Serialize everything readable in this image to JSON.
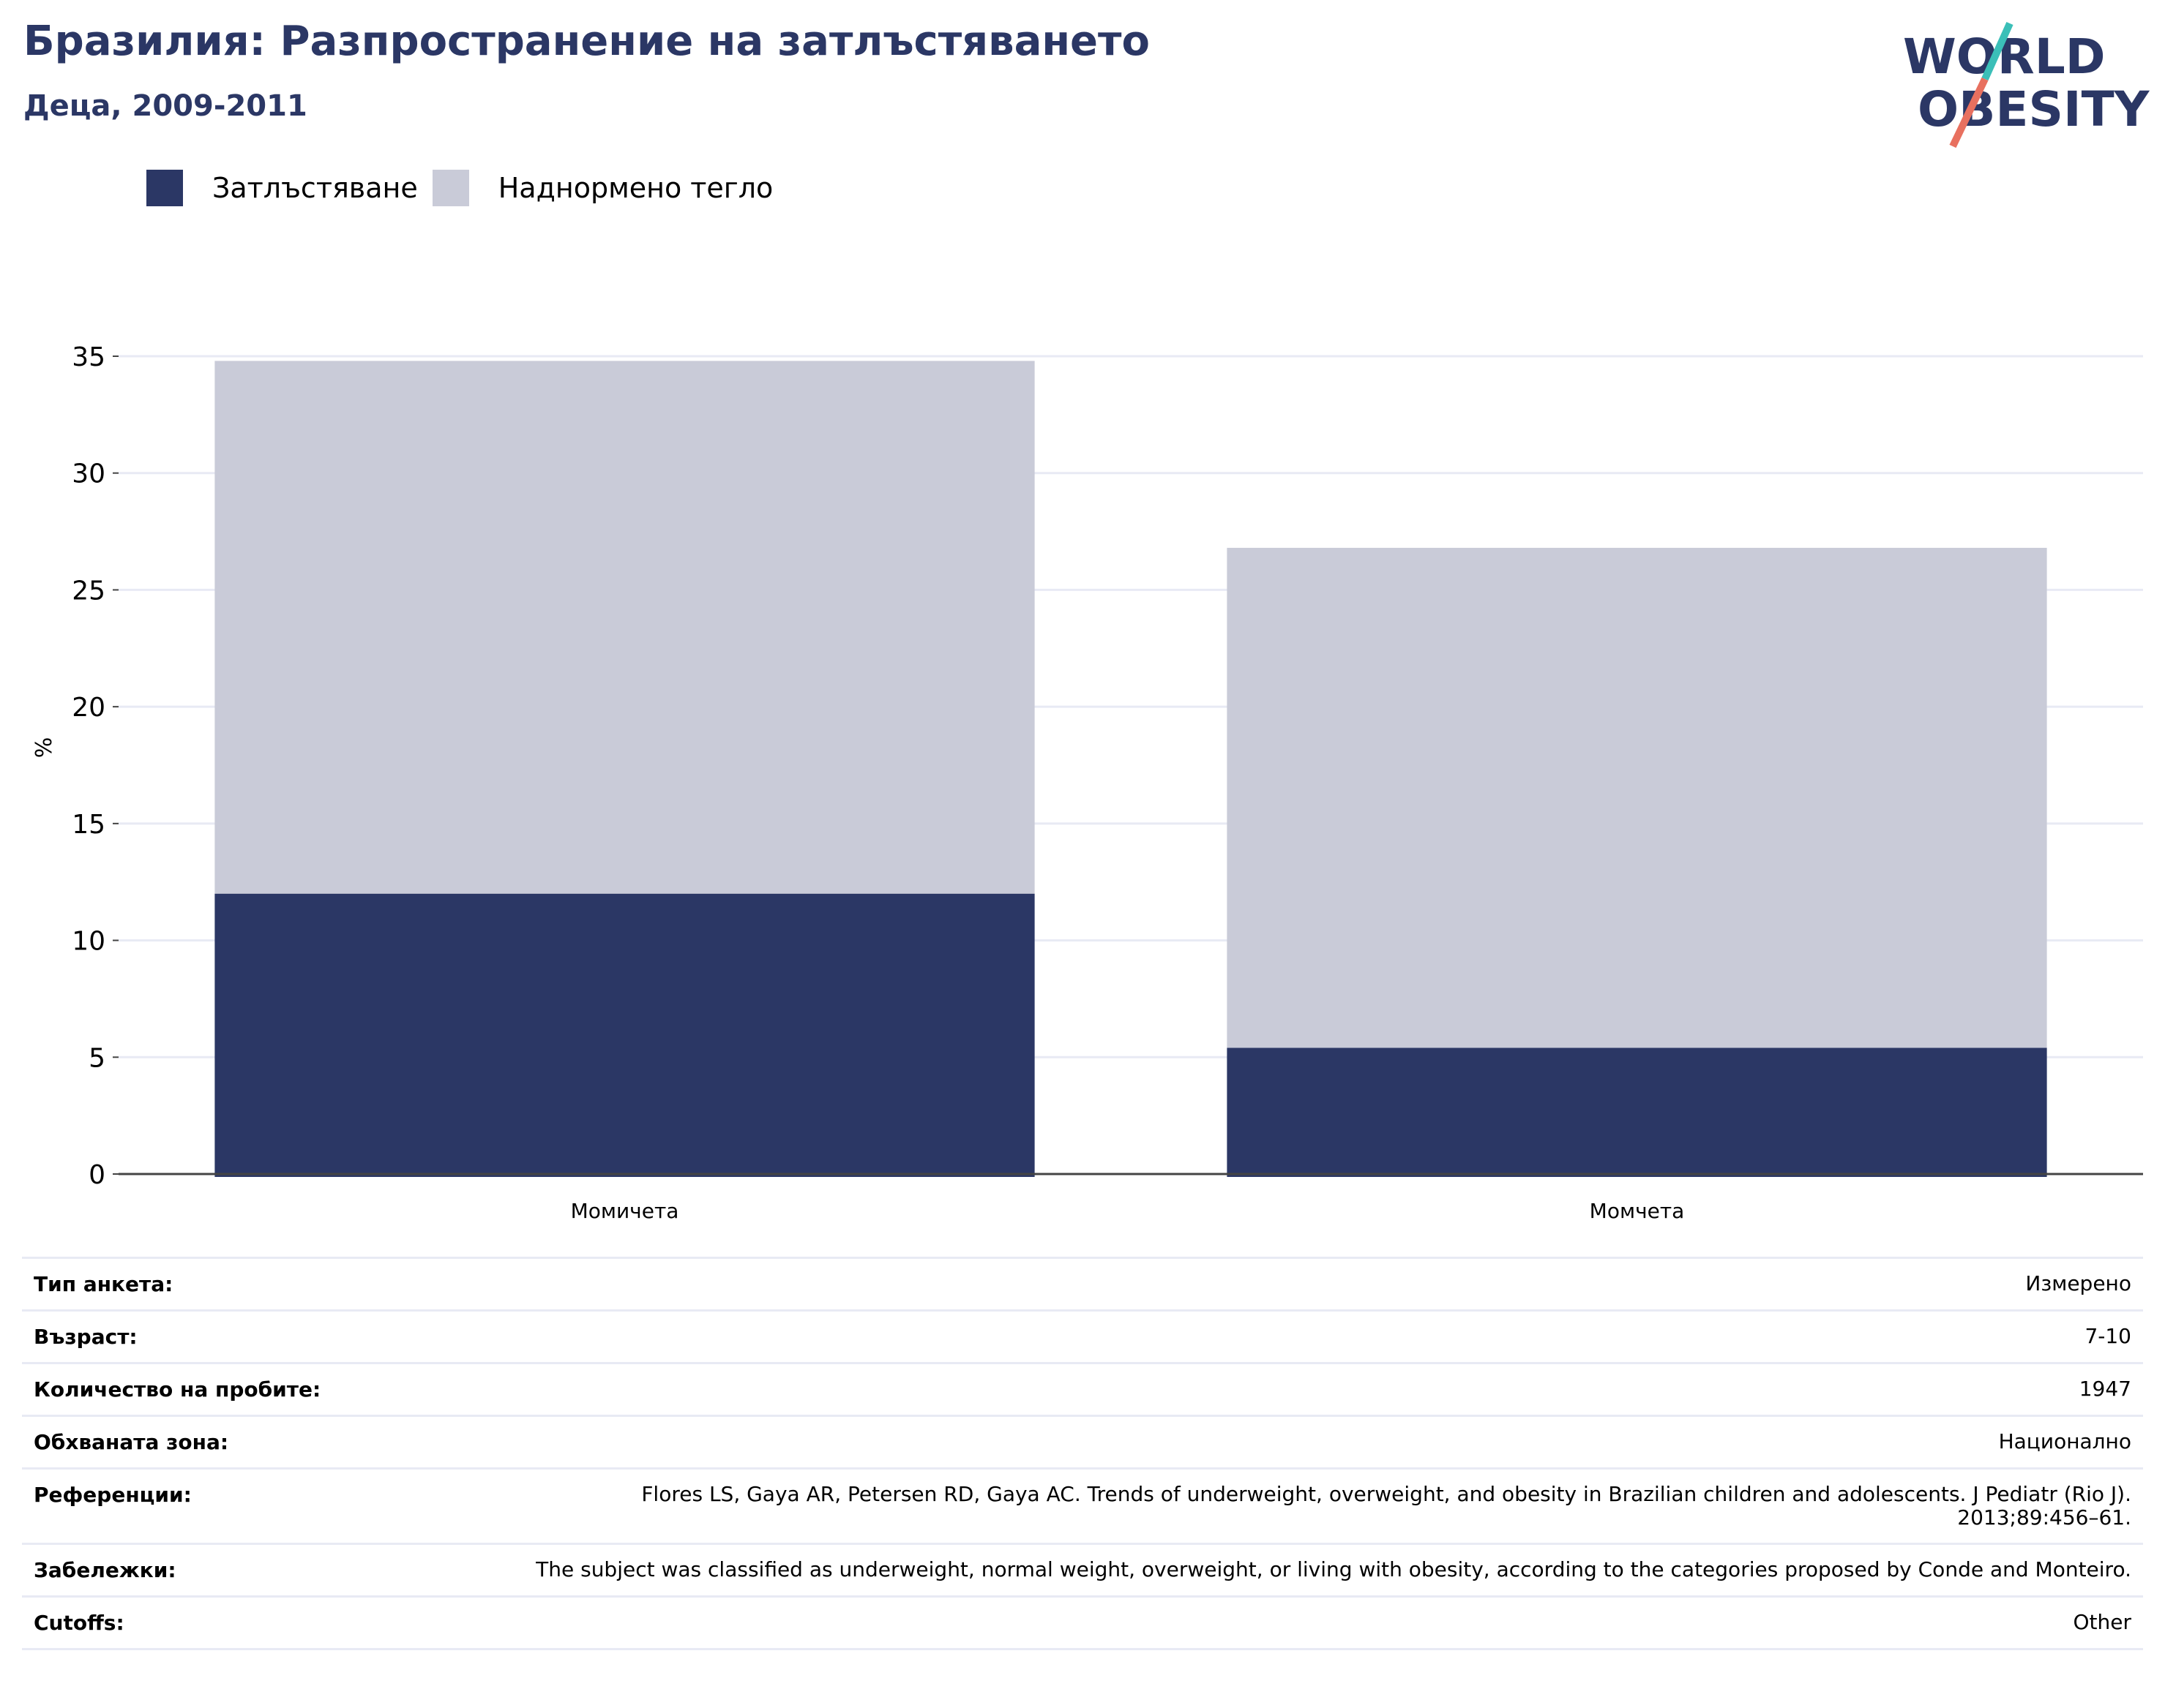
{
  "header": {
    "title": "Бразилия: Разпространение на затлъстяването",
    "subtitle": "Деца, 2009-2011"
  },
  "logo": {
    "line1": "WORLD",
    "line2": "OBESITY",
    "colors": {
      "text": "#2b3765",
      "slash_top": "#3bbfb8",
      "slash_bottom": "#e8705f"
    }
  },
  "chart_data": {
    "type": "bar",
    "stacked": true,
    "categories": [
      "Момичета",
      "Момчета"
    ],
    "series": [
      {
        "name": "Затлъстяване",
        "values": [
          12.0,
          5.4
        ],
        "color": "#2b3765"
      },
      {
        "name": "Наднормено тегло",
        "values": [
          22.8,
          21.4
        ],
        "color": "#c9cbd8"
      }
    ],
    "ylabel": "%",
    "ylim": [
      0,
      35
    ],
    "yticks": [
      0,
      5,
      10,
      15,
      20,
      25,
      30,
      35
    ],
    "grid": true,
    "legend_position": "top-left"
  },
  "meta": [
    {
      "key": "Тип анкета:",
      "value": "Измерено"
    },
    {
      "key": "Възраст:",
      "value": "7-10"
    },
    {
      "key": "Количество на пробите:",
      "value": "1947"
    },
    {
      "key": "Обхваната зона:",
      "value": "Национално"
    },
    {
      "key": "Референции:",
      "value": "Flores LS, Gaya AR, Petersen RD, Gaya AC. Trends of underweight, overweight, and obesity in Brazilian children and adolescents. J Pediatr (Rio J). 2013;89:456–61."
    },
    {
      "key": "Забележки:",
      "value": "The subject was classified as underweight, normal weight, overweight, or living with obesity, according to the categories proposed by Conde and Monteiro."
    },
    {
      "key": "Cutoffs:",
      "value": "Other"
    }
  ]
}
